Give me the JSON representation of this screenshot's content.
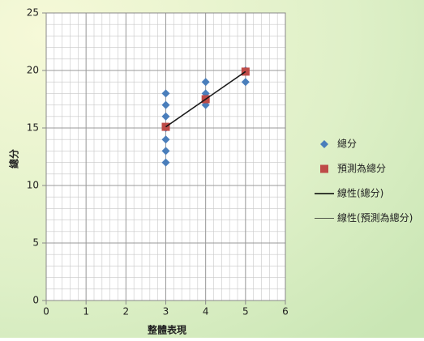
{
  "chart_data": {
    "type": "scatter",
    "xlabel": "整體表現",
    "ylabel": "總分",
    "xlim": [
      0,
      6
    ],
    "xticks": [
      0,
      1,
      2,
      3,
      4,
      5,
      6
    ],
    "ylim": [
      0,
      25
    ],
    "yticks": [
      0,
      5,
      10,
      15,
      20,
      25
    ],
    "grid": true,
    "minor_grid": true,
    "legend": "right",
    "series": [
      {
        "name": "總分",
        "color": "#4a7ebb",
        "marker": "diamond",
        "x": [
          3,
          3,
          3,
          3,
          3,
          3,
          3,
          4,
          4,
          4,
          5,
          5
        ],
        "values": [
          12,
          13,
          14,
          15,
          16,
          17,
          18,
          17,
          18,
          19,
          19,
          20
        ]
      },
      {
        "name": "預測為總分",
        "color": "#be4b48",
        "marker": "square",
        "x": [
          3,
          4,
          5
        ],
        "values": [
          15.1,
          17.5,
          19.9
        ]
      },
      {
        "name": "線性(總分)",
        "color": "#000000",
        "marker": "line",
        "width": 1.5,
        "x": [
          3,
          5
        ],
        "values": [
          15.1,
          19.9
        ]
      },
      {
        "name": "線性(預測為總分)",
        "color": "#222222",
        "marker": "line",
        "width": 0.8,
        "x": [
          3,
          5
        ],
        "values": [
          15.1,
          19.9
        ]
      }
    ]
  }
}
